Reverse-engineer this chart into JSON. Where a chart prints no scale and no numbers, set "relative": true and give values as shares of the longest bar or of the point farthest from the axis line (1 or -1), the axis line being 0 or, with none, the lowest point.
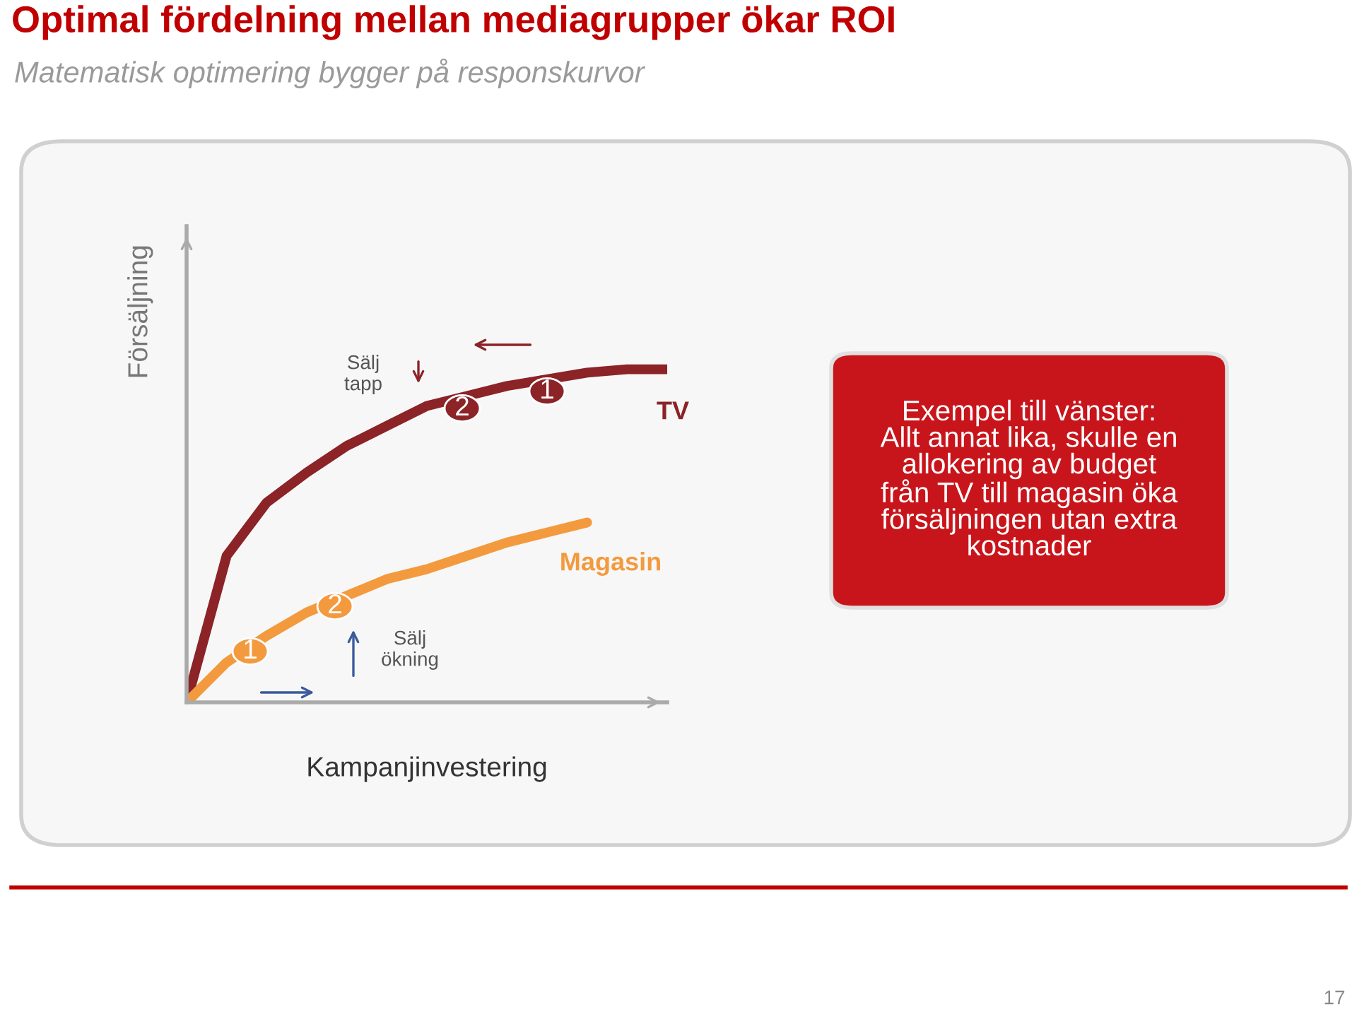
{
  "chart_data": {
    "type": "line",
    "relative": true,
    "title": "Optimal fördelning mellan mediagrupper ökar ROI",
    "subtitle": "Matematisk optimering bygger på responskurvor",
    "xlabel": "Kampanjinvestering",
    "ylabel": "Försäljning",
    "categories": [
      null,
      null,
      null,
      null,
      null,
      null,
      null,
      null,
      null,
      null,
      null,
      null,
      null
    ],
    "series": [
      {
        "name": "TV",
        "color": "#8b2327",
        "values": [
          0,
          0.44,
          0.6,
          0.69,
          0.77,
          0.83,
          0.89,
          0.92,
          0.95,
          0.97,
          0.99,
          1.0,
          1.0
        ]
      },
      {
        "name": "Magasin",
        "color": "#f39a3e",
        "values": [
          0,
          0.12,
          0.2,
          0.27,
          0.32,
          0.37,
          0.4,
          0.44,
          0.48,
          0.51,
          0.54,
          null,
          null
        ]
      }
    ],
    "annotations": [
      "Sälj tapp",
      "Sälj ökning",
      "1",
      "2",
      "1",
      "2",
      "Exempel till vänster:\nAllt annat lika, skulle en\nallokering av budget\nfrån TV till magasin öka\nförsäljningen utan extra\nkostnader",
      "17"
    ],
    "legend": false
  }
}
